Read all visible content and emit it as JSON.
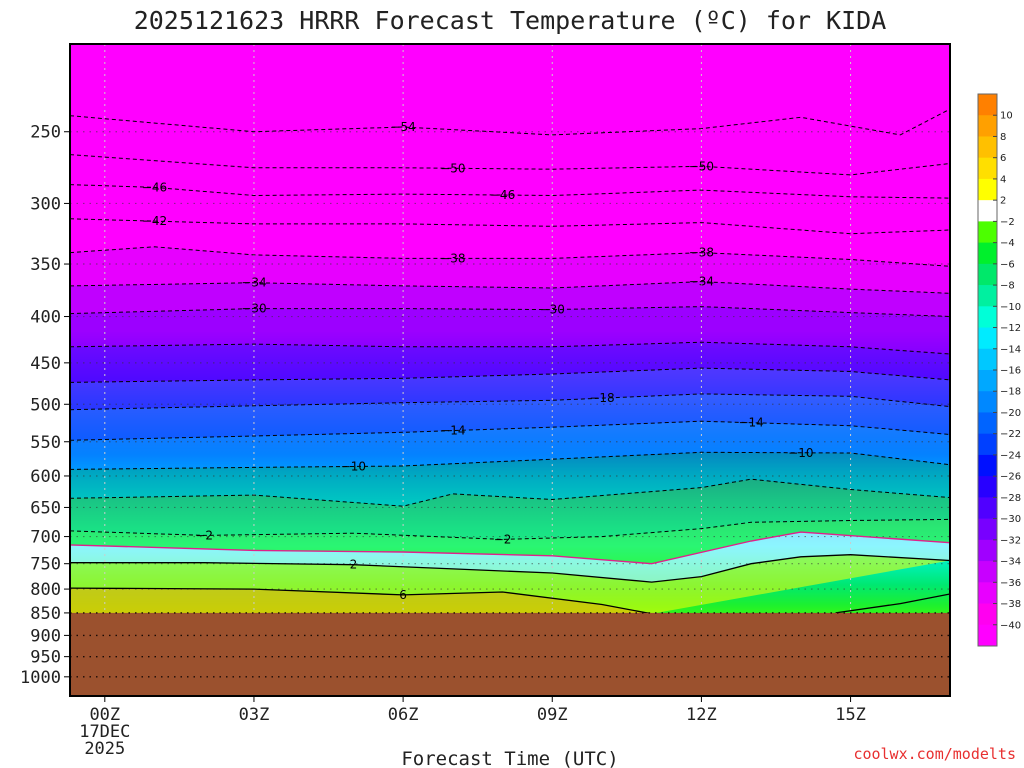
{
  "chart_data": {
    "type": "contour",
    "title": "2025121623 HRRR Forecast Temperature (ºC) for KIDA",
    "xlabel": "Forecast Time (UTC)",
    "ylabel": "",
    "credit": "coolwx.com/modelts",
    "x_ticks": [
      {
        "hour": 0,
        "label": "00Z",
        "sub": [
          "17DEC",
          "2025"
        ]
      },
      {
        "hour": 3,
        "label": "03Z"
      },
      {
        "hour": 6,
        "label": "06Z"
      },
      {
        "hour": 9,
        "label": "09Z"
      },
      {
        "hour": 12,
        "label": "12Z"
      },
      {
        "hour": 15,
        "label": "15Z"
      }
    ],
    "xlim": [
      -0.7,
      17.0
    ],
    "y_ticks": [
      250,
      300,
      350,
      400,
      450,
      500,
      550,
      600,
      650,
      700,
      750,
      800,
      850,
      900,
      950,
      1000
    ],
    "ylim_hpa": [
      200,
      1050
    ],
    "y_scale": "log-pressure",
    "surface_pressure_hpa": 850,
    "colorbar": {
      "labels": [
        "10",
        "8",
        "6",
        "4",
        "2",
        "-2",
        "-4",
        "-6",
        "-8",
        "-10",
        "-12",
        "-14",
        "-16",
        "-18",
        "-20",
        "-22",
        "-24",
        "-26",
        "-28",
        "-30",
        "-32",
        "-34",
        "-36",
        "-38",
        "-40"
      ],
      "colors": [
        "#ff8000",
        "#ffa000",
        "#ffc000",
        "#ffdf00",
        "#ffff00",
        "#ffffff",
        "#4cff00",
        "#00f02c",
        "#00e86a",
        "#00f0a0",
        "#00ffd8",
        "#00ebff",
        "#00c8ff",
        "#00a8ff",
        "#0088ff",
        "#0064ff",
        "#0040ff",
        "#0010ff",
        "#2800ff",
        "#5000ff",
        "#7800ff",
        "#a000ff",
        "#c800ff",
        "#e800ff",
        "#ff00f0",
        "#ff00ff"
      ]
    },
    "contours": [
      {
        "value": -54,
        "label": "-54",
        "style": "dashed",
        "points": [
          [
            -0.7,
            240
          ],
          [
            3,
            250
          ],
          [
            6,
            247
          ],
          [
            9,
            252
          ],
          [
            12,
            248
          ],
          [
            14,
            241
          ],
          [
            16,
            252
          ],
          [
            17,
            236
          ]
        ],
        "labels_at": [
          6
        ]
      },
      {
        "value": -50,
        "label": "-50",
        "style": "dashed",
        "points": [
          [
            -0.7,
            265
          ],
          [
            3,
            274
          ],
          [
            6,
            274
          ],
          [
            9,
            275
          ],
          [
            12,
            273
          ],
          [
            15,
            279
          ],
          [
            17,
            271
          ]
        ],
        "labels_at": [
          7,
          12
        ]
      },
      {
        "value": -46,
        "label": "-46",
        "style": "dashed",
        "points": [
          [
            -0.7,
            286
          ],
          [
            1,
            288
          ],
          [
            3,
            294
          ],
          [
            6,
            293
          ],
          [
            9,
            294
          ],
          [
            12,
            290
          ],
          [
            15,
            295
          ],
          [
            17,
            296
          ]
        ],
        "labels_at": [
          1,
          8
        ]
      },
      {
        "value": -42,
        "label": "-42",
        "style": "dashed",
        "points": [
          [
            -0.7,
            312
          ],
          [
            3,
            316
          ],
          [
            6,
            316
          ],
          [
            9,
            318
          ],
          [
            12,
            315
          ],
          [
            15,
            324
          ],
          [
            17,
            321
          ]
        ],
        "labels_at": [
          1
        ]
      },
      {
        "value": -38,
        "label": "-38",
        "style": "dashed",
        "points": [
          [
            -0.7,
            340
          ],
          [
            1,
            335
          ],
          [
            3,
            342
          ],
          [
            6,
            345
          ],
          [
            9,
            345
          ],
          [
            12,
            340
          ],
          [
            15,
            346
          ],
          [
            17,
            352
          ]
        ],
        "labels_at": [
          7,
          12
        ]
      },
      {
        "value": -34,
        "label": "-34",
        "style": "dashed",
        "points": [
          [
            -0.7,
            370
          ],
          [
            3,
            367
          ],
          [
            6,
            370
          ],
          [
            9,
            372
          ],
          [
            12,
            366
          ],
          [
            15,
            373
          ],
          [
            17,
            377
          ]
        ],
        "labels_at": [
          3,
          12
        ]
      },
      {
        "value": -30,
        "label": "-30",
        "style": "dashed",
        "points": [
          [
            -0.7,
            397
          ],
          [
            3,
            392
          ],
          [
            6,
            392
          ],
          [
            9,
            393
          ],
          [
            12,
            390
          ],
          [
            15,
            396
          ],
          [
            17,
            400
          ]
        ],
        "labels_at": [
          3,
          9
        ]
      },
      {
        "value": -26,
        "label": "",
        "style": "dashed",
        "points": [
          [
            -0.7,
            432
          ],
          [
            3,
            429
          ],
          [
            6,
            432
          ],
          [
            9,
            432
          ],
          [
            12,
            427
          ],
          [
            15,
            432
          ],
          [
            17,
            440
          ]
        ]
      },
      {
        "value": -22,
        "label": "",
        "style": "dashed",
        "points": [
          [
            -0.7,
            473
          ],
          [
            3,
            470
          ],
          [
            6,
            468
          ],
          [
            9,
            463
          ],
          [
            12,
            456
          ],
          [
            15,
            460
          ],
          [
            17,
            470
          ]
        ]
      },
      {
        "value": -18,
        "label": "-18",
        "style": "dashed",
        "points": [
          [
            -0.7,
            507
          ],
          [
            3,
            502
          ],
          [
            6,
            498
          ],
          [
            9,
            495
          ],
          [
            12,
            487
          ],
          [
            15,
            490
          ],
          [
            17,
            503
          ]
        ],
        "labels_at": [
          10
        ]
      },
      {
        "value": -14,
        "label": "-14",
        "style": "dashed",
        "points": [
          [
            -0.7,
            548
          ],
          [
            3,
            542
          ],
          [
            6,
            537
          ],
          [
            9,
            530
          ],
          [
            12,
            522
          ],
          [
            15,
            528
          ],
          [
            17,
            540
          ]
        ],
        "labels_at": [
          7,
          13
        ]
      },
      {
        "value": -10,
        "label": "-10",
        "style": "dashed",
        "points": [
          [
            -0.7,
            590
          ],
          [
            3,
            587
          ],
          [
            6,
            585
          ],
          [
            9,
            575
          ],
          [
            12,
            565
          ],
          [
            15,
            566
          ],
          [
            17,
            583
          ]
        ],
        "labels_at": [
          5,
          14
        ]
      },
      {
        "value": -6,
        "label": "",
        "style": "dashed",
        "points": [
          [
            -0.7,
            635
          ],
          [
            3,
            630
          ],
          [
            6,
            648
          ],
          [
            7,
            628
          ],
          [
            9,
            637
          ],
          [
            12,
            618
          ],
          [
            13,
            605
          ],
          [
            15,
            621
          ],
          [
            17,
            634
          ]
        ]
      },
      {
        "value": -2,
        "label": "-2",
        "style": "dashed",
        "points": [
          [
            -0.7,
            690
          ],
          [
            2,
            698
          ],
          [
            5,
            694
          ],
          [
            8,
            705
          ],
          [
            10,
            700
          ],
          [
            12,
            686
          ],
          [
            13,
            675
          ],
          [
            15,
            672
          ],
          [
            17,
            670
          ]
        ],
        "labels_at": [
          2,
          8
        ]
      },
      {
        "value": 0,
        "label": "",
        "style": "solid-magenta",
        "points": [
          [
            -0.7,
            715
          ],
          [
            3,
            725
          ],
          [
            6,
            728
          ],
          [
            9,
            735
          ],
          [
            11,
            750
          ],
          [
            13,
            708
          ],
          [
            14,
            692
          ],
          [
            17,
            711
          ]
        ]
      },
      {
        "value": 2,
        "label": "2",
        "style": "solid",
        "points": [
          [
            -0.7,
            748
          ],
          [
            2,
            748
          ],
          [
            5,
            752
          ],
          [
            7,
            760
          ],
          [
            9,
            768
          ],
          [
            11,
            786
          ],
          [
            12,
            775
          ],
          [
            13,
            750
          ],
          [
            14,
            737
          ],
          [
            15,
            733
          ],
          [
            17,
            744
          ]
        ],
        "labels_at": [
          5
        ]
      },
      {
        "value": 6,
        "label": "6",
        "style": "solid",
        "points": [
          [
            -0.7,
            798
          ],
          [
            3,
            800
          ],
          [
            6,
            812
          ],
          [
            8,
            806
          ],
          [
            10,
            832
          ],
          [
            11,
            852
          ]
        ],
        "labels_at": [
          6
        ]
      },
      {
        "value": 6,
        "label": "",
        "style": "solid",
        "points": [
          [
            14.7,
            850
          ],
          [
            16,
            830
          ],
          [
            17,
            810
          ]
        ]
      }
    ]
  }
}
